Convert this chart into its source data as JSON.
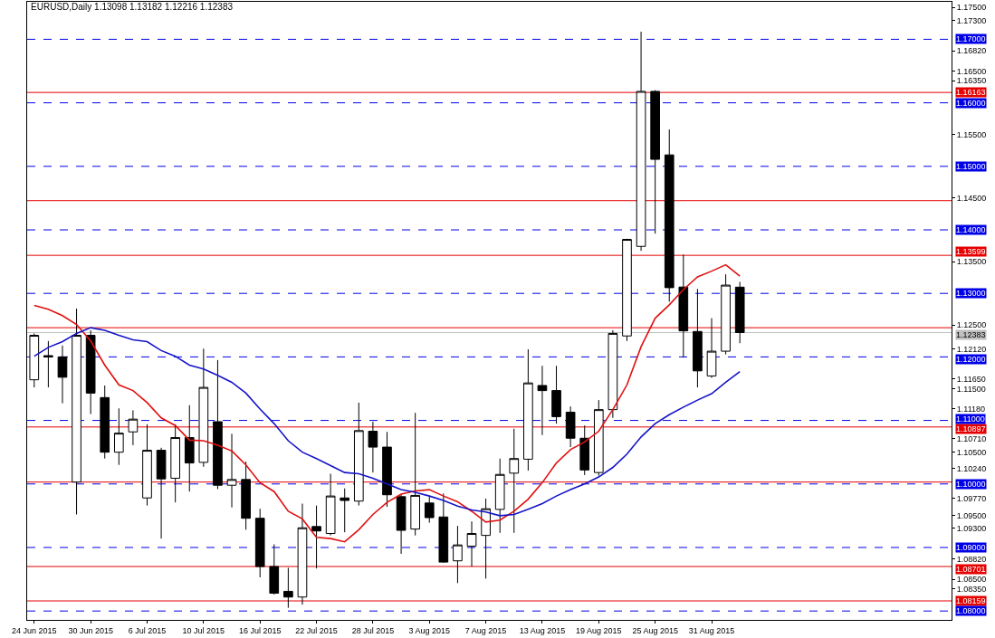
{
  "chart_data": {
    "type": "candlestick",
    "title": "EURUSD,Daily 1.13098 1.13182 1.12216 1.12383",
    "categories": [
      "24 Jun 2015",
      null,
      null,
      null,
      "30 Jun 2015",
      null,
      null,
      null,
      "6 Jul 2015",
      null,
      null,
      null,
      "10 Jul 2015",
      null,
      null,
      null,
      "16 Jul 2015",
      null,
      null,
      null,
      "22 Jul 2015",
      null,
      null,
      null,
      "28 Jul 2015",
      null,
      null,
      null,
      "3 Aug 2015",
      null,
      null,
      null,
      "7 Aug 2015",
      null,
      null,
      null,
      "13 Aug 2015",
      null,
      null,
      null,
      "19 Aug 2015",
      null,
      null,
      null,
      "25 Aug 2015",
      null,
      null,
      null,
      "31 Aug 2015",
      null,
      null
    ],
    "ohlc": [
      [
        1.1164,
        1.1237,
        1.1152,
        1.1234
      ],
      [
        1.1202,
        1.1225,
        1.1152,
        1.12
      ],
      [
        1.12,
        1.1218,
        1.1127,
        1.1168
      ],
      [
        1.1003,
        1.1276,
        1.0952,
        1.1234
      ],
      [
        1.1234,
        1.1242,
        1.111,
        1.1143
      ],
      [
        1.1136,
        1.1155,
        1.104,
        1.105
      ],
      [
        1.105,
        1.1119,
        1.103,
        1.108
      ],
      [
        1.1082,
        1.1116,
        1.1061,
        1.1102
      ],
      [
        1.0978,
        1.1094,
        1.0966,
        1.1053
      ],
      [
        1.1053,
        1.1057,
        1.0914,
        1.1008
      ],
      [
        1.1009,
        1.1094,
        1.0971,
        1.1073
      ],
      [
        1.1073,
        1.1124,
        1.0988,
        1.1033
      ],
      [
        1.1034,
        1.1213,
        1.1027,
        1.1152
      ],
      [
        1.1098,
        1.1195,
        1.0992,
        1.0998
      ],
      [
        1.0998,
        1.1079,
        1.0963,
        1.1007
      ],
      [
        1.1007,
        1.1035,
        1.0928,
        1.0946
      ],
      [
        1.0946,
        1.0961,
        1.0853,
        1.087
      ],
      [
        1.087,
        1.0905,
        1.0826,
        1.0828
      ],
      [
        1.0831,
        1.0868,
        1.0805,
        1.0822
      ],
      [
        1.0822,
        1.0969,
        1.081,
        1.0931
      ],
      [
        1.0933,
        1.0966,
        1.0867,
        1.0926
      ],
      [
        1.0922,
        1.1016,
        1.0919,
        1.0981
      ],
      [
        1.0978,
        1.0993,
        1.0924,
        1.0974
      ],
      [
        1.0973,
        1.1128,
        1.0966,
        1.1084
      ],
      [
        1.1083,
        1.1098,
        1.1018,
        1.1058
      ],
      [
        1.1058,
        1.1082,
        1.0964,
        1.0983
      ],
      [
        1.098,
        1.0983,
        1.089,
        1.0927
      ],
      [
        1.0929,
        1.1112,
        1.0919,
        1.0982
      ],
      [
        1.097,
        1.098,
        1.0939,
        1.0947
      ],
      [
        1.0948,
        1.0985,
        1.0876,
        1.0877
      ],
      [
        1.0879,
        1.0934,
        1.0844,
        1.0904
      ],
      [
        1.0902,
        1.0941,
        1.087,
        1.0922
      ],
      [
        1.0919,
        1.0977,
        1.0851,
        1.0961
      ],
      [
        1.096,
        1.104,
        1.0923,
        1.1015
      ],
      [
        1.1017,
        1.1087,
        1.0923,
        1.104
      ],
      [
        1.1039,
        1.1212,
        1.1021,
        1.1159
      ],
      [
        1.1155,
        1.1186,
        1.1077,
        1.1147
      ],
      [
        1.1147,
        1.1186,
        1.1095,
        1.1106
      ],
      [
        1.1113,
        1.1122,
        1.1058,
        1.1072
      ],
      [
        1.1072,
        1.1092,
        1.1014,
        1.1022
      ],
      [
        1.1018,
        1.1132,
        1.1013,
        1.1117
      ],
      [
        1.1117,
        1.1242,
        1.1104,
        1.1237
      ],
      [
        1.1233,
        1.1386,
        1.1225,
        1.1385
      ],
      [
        1.1374,
        1.1712,
        1.1367,
        1.1618
      ],
      [
        1.1618,
        1.162,
        1.1394,
        1.1511
      ],
      [
        1.1518,
        1.1558,
        1.1287,
        1.1309
      ],
      [
        1.131,
        1.1361,
        1.1199,
        1.1241
      ],
      [
        1.124,
        1.1307,
        1.1152,
        1.1178
      ],
      [
        1.117,
        1.1261,
        1.1167,
        1.1209
      ],
      [
        1.1209,
        1.133,
        1.1204,
        1.1313
      ],
      [
        1.13098,
        1.13182,
        1.12216,
        1.12383
      ]
    ],
    "colors": [
      "#ffffff",
      "#000000",
      "#000000",
      "#ffffff",
      "#000000",
      "#000000",
      "#ffffff",
      "#ffffff",
      "#ffffff",
      "#000000",
      "#ffffff",
      "#000000",
      "#ffffff",
      "#000000",
      "#ffffff",
      "#000000",
      "#000000",
      "#000000",
      "#000000",
      "#ffffff",
      "#000000",
      "#ffffff",
      "#000000",
      "#ffffff",
      "#000000",
      "#000000",
      "#000000",
      "#ffffff",
      "#000000",
      "#000000",
      "#ffffff",
      "#ffffff",
      "#ffffff",
      "#ffffff",
      "#ffffff",
      "#ffffff",
      "#000000",
      "#000000",
      "#000000",
      "#000000",
      "#ffffff",
      "#ffffff",
      "#ffffff",
      "#ffffff",
      "#000000",
      "#000000",
      "#000000",
      "#000000",
      "#ffffff",
      "#ffffff",
      "#000000"
    ],
    "series": [
      {
        "type": "line",
        "color": "#e01010",
        "values": [
          1.1281,
          1.1275,
          1.1265,
          1.1251,
          1.1225,
          1.1187,
          1.1156,
          1.1147,
          1.1128,
          1.1104,
          1.1092,
          1.1069,
          1.1068,
          1.1061,
          1.1052,
          1.103,
          1.1002,
          1.0988,
          1.0957,
          1.0945,
          1.0916,
          1.0914,
          1.0909,
          1.0928,
          1.0952,
          1.0971,
          1.0984,
          1.0989,
          1.0991,
          1.0981,
          1.0972,
          1.0957,
          1.094,
          1.0943,
          1.0957,
          1.0976,
          1.1002,
          1.1033,
          1.1054,
          1.1066,
          1.1083,
          1.1117,
          1.1156,
          1.1216,
          1.1261,
          1.1282,
          1.1306,
          1.1326,
          1.1335,
          1.1345,
          1.1327
        ]
      },
      {
        "type": "line",
        "color": "#1414c8",
        "values": [
          1.1201,
          1.1215,
          1.1224,
          1.1237,
          1.1246,
          1.1242,
          1.1234,
          1.1227,
          1.1224,
          1.121,
          1.1201,
          1.1187,
          1.1181,
          1.1171,
          1.116,
          1.1143,
          1.1118,
          1.1095,
          1.1068,
          1.105,
          1.104,
          1.1029,
          1.1018,
          1.1016,
          1.1009,
          1.1,
          1.0991,
          1.0987,
          1.0981,
          1.0974,
          1.0965,
          1.0959,
          1.0956,
          1.095,
          1.0952,
          1.096,
          1.0969,
          1.0981,
          1.0991,
          1.1,
          1.1011,
          1.1026,
          1.1047,
          1.1074,
          1.1095,
          1.1109,
          1.1121,
          1.1132,
          1.1142,
          1.116,
          1.1177
        ]
      }
    ],
    "ylim": [
      1.0786,
      1.1759
    ],
    "yticks": [
      {
        "value": 1.175,
        "label": "1.17500"
      },
      {
        "value": 1.173,
        "label": "1.17300"
      },
      {
        "value": 1.1682,
        "label": "1.16820"
      },
      {
        "value": 1.165,
        "label": "1.16500"
      },
      {
        "value": 1.1635,
        "label": "1.16350"
      },
      {
        "value": 1.155,
        "label": "1.15500"
      },
      {
        "value": 1.145,
        "label": "1.14500"
      },
      {
        "value": 1.135,
        "label": "1.13500"
      },
      {
        "value": 1.125,
        "label": "1.12500"
      },
      {
        "value": 1.1212,
        "label": "1.12120"
      },
      {
        "value": 1.1165,
        "label": "1.11650"
      },
      {
        "value": 1.115,
        "label": "1.11500"
      },
      {
        "value": 1.1118,
        "label": "1.11180"
      },
      {
        "value": 1.1071,
        "label": "1.10710"
      },
      {
        "value": 1.105,
        "label": "1.10500"
      },
      {
        "value": 1.1024,
        "label": "1.10240"
      },
      {
        "value": 1.0977,
        "label": "1.09770"
      },
      {
        "value": 1.095,
        "label": "1.09500"
      },
      {
        "value": 1.093,
        "label": "1.09300"
      },
      {
        "value": 1.0882,
        "label": "1.08820"
      },
      {
        "value": 1.085,
        "label": "1.08500"
      },
      {
        "value": 1.0835,
        "label": "1.08350"
      }
    ],
    "ref_lines": [
      {
        "axis": "y",
        "value": 1.16163,
        "label": "1.16163",
        "color": "#e60000",
        "line_style": "solid"
      },
      {
        "axis": "y",
        "value": 1.1446,
        "color": "#e60000",
        "line_style": "solid"
      },
      {
        "axis": "y",
        "value": 1.13599,
        "label": "1.13599",
        "color": "#e60000",
        "line_style": "solid"
      },
      {
        "axis": "y",
        "value": 1.1246,
        "color": "#e60000",
        "line_style": "solid"
      },
      {
        "axis": "y",
        "value": 1.12383,
        "label": "1.12383",
        "color": "#c0c0c0",
        "line_style": "solid"
      },
      {
        "axis": "y",
        "value": 1.10897,
        "label": "1.10897",
        "color": "#e60000",
        "line_style": "solid"
      },
      {
        "axis": "y",
        "value": 1.1003,
        "color": "#e60000",
        "line_style": "solid"
      },
      {
        "axis": "y",
        "value": 1.08701,
        "label": "1.08701",
        "color": "#e60000",
        "line_style": "solid"
      },
      {
        "axis": "y",
        "value": 1.08159,
        "label": "1.08159",
        "color": "#e60000",
        "line_style": "solid"
      },
      {
        "axis": "y",
        "value": 1.17,
        "label": "1.17000",
        "color": "#0000e6",
        "line_style": "dashed"
      },
      {
        "axis": "y",
        "value": 1.16,
        "label": "1.16000",
        "color": "#0000e6",
        "line_style": "dashed"
      },
      {
        "axis": "y",
        "value": 1.15,
        "label": "1.15000",
        "color": "#0000e6",
        "line_style": "dashed"
      },
      {
        "axis": "y",
        "value": 1.14,
        "label": "1.14000",
        "color": "#0000e6",
        "line_style": "dashed"
      },
      {
        "axis": "y",
        "value": 1.13,
        "label": "1.13000",
        "color": "#0000e6",
        "line_style": "dashed"
      },
      {
        "axis": "y",
        "value": 1.12,
        "label": "1.12000",
        "color": "#0000e6",
        "line_style": "dashed"
      },
      {
        "axis": "y",
        "value": 1.11,
        "label": "1.11000",
        "color": "#0000e6",
        "line_style": "dashed"
      },
      {
        "axis": "y",
        "value": 1.1,
        "label": "1.10000",
        "color": "#0000e6",
        "line_style": "dashed"
      },
      {
        "axis": "y",
        "value": 1.09,
        "label": "1.09000",
        "color": "#0000e6",
        "line_style": "dashed"
      },
      {
        "axis": "y",
        "value": 1.08,
        "label": "1.08000",
        "color": "#0000e6",
        "line_style": "dashed"
      }
    ]
  }
}
